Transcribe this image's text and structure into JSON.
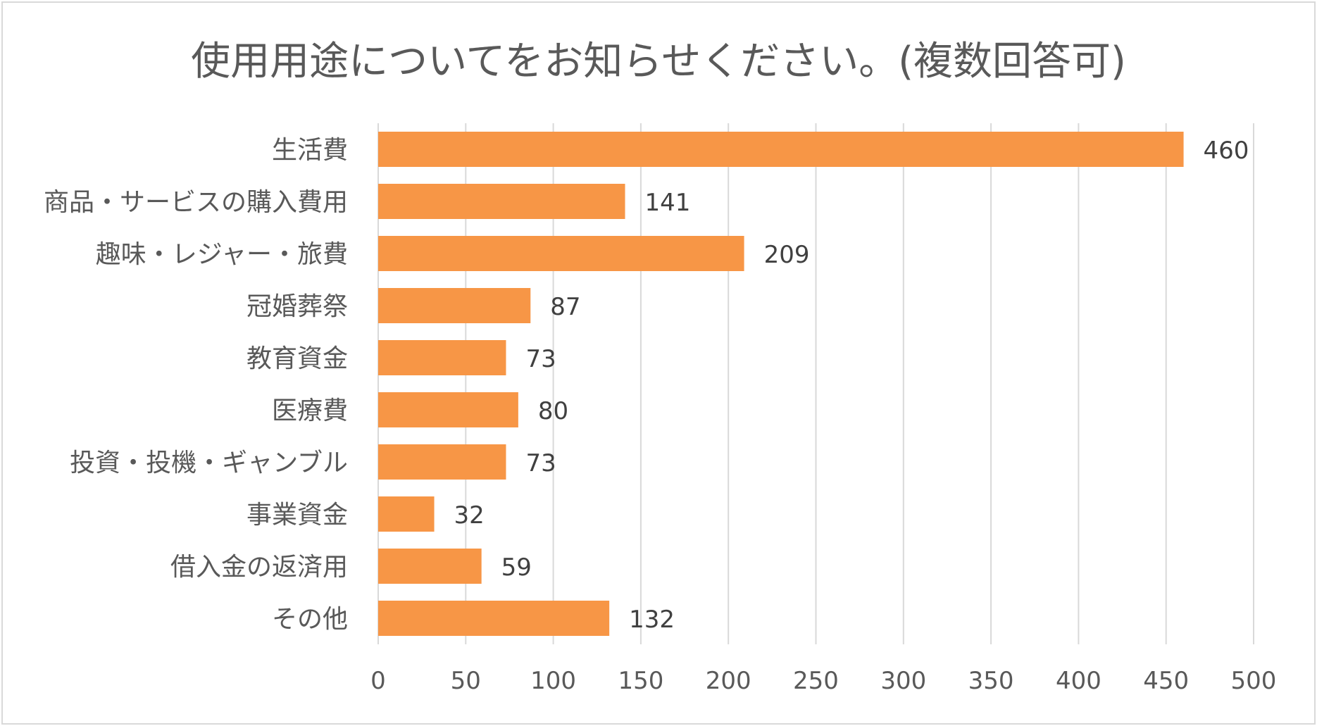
{
  "chart_data": {
    "type": "bar",
    "orientation": "horizontal",
    "title": "使用用途についてをお知らせください。(複数回答可)",
    "categories": [
      "生活費",
      "商品・サービスの購入費用",
      "趣味・レジャー・旅費",
      "冠婚葬祭",
      "教育資金",
      "医療費",
      "投資・投機・ギャンブル",
      "事業資金",
      "借入金の返済用",
      "その他"
    ],
    "values": [
      460,
      141,
      209,
      87,
      73,
      80,
      73,
      32,
      59,
      132
    ],
    "value_labels": [
      "460",
      "141",
      "209",
      "87",
      "73",
      "80",
      "73",
      "32",
      "59",
      "132"
    ],
    "xlim": [
      0,
      500
    ],
    "xticks": [
      0,
      50,
      100,
      150,
      200,
      250,
      300,
      350,
      400,
      450,
      500
    ],
    "xtick_labels": [
      "0",
      "50",
      "100",
      "150",
      "200",
      "250",
      "300",
      "350",
      "400",
      "450",
      "500"
    ],
    "xlabel": "",
    "ylabel": "",
    "grid": "vertical",
    "legend": "none",
    "colors": {
      "bar": "#F79646",
      "grid": "#d9d9d9",
      "text": "#595959"
    }
  }
}
